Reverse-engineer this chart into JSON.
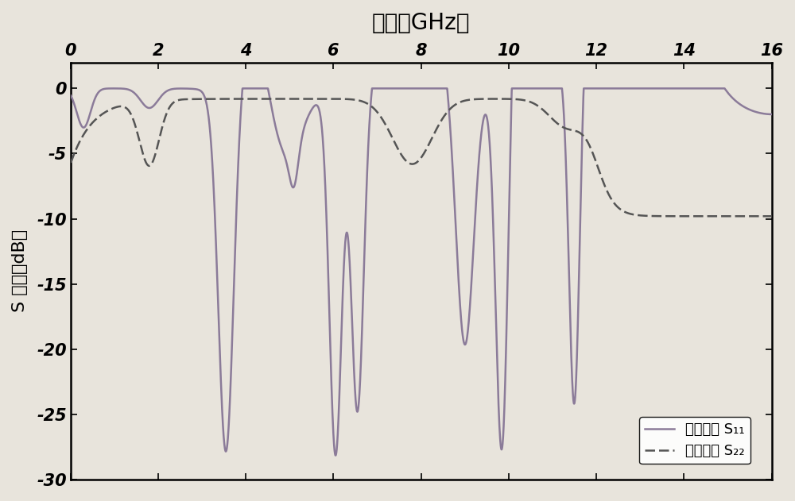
{
  "title": "频率（GHz）",
  "ylabel": "S 曲线（dB）",
  "xlim": [
    0,
    16
  ],
  "ylim": [
    -30,
    2
  ],
  "xticks": [
    0,
    2,
    4,
    6,
    8,
    10,
    12,
    14,
    16
  ],
  "yticks": [
    0,
    -5,
    -10,
    -15,
    -20,
    -25,
    -30
  ],
  "legend1": "回波损耗 S₁₁",
  "legend2": "插入损耗 S₂₂",
  "s11_color": "#8B7B99",
  "s21_color": "#555555",
  "bg_color": "#e8e4dc",
  "plot_bg_color": "#e8e4dc",
  "title_fontsize": 20,
  "label_fontsize": 16,
  "tick_fontsize": 15,
  "legend_fontsize": 13,
  "linewidth": 1.8
}
